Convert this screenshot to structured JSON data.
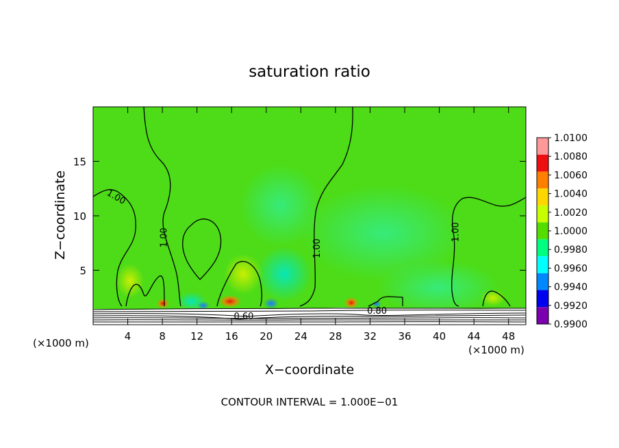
{
  "chart_data": {
    "type": "heatmap",
    "title": "saturation ratio",
    "xlabel": "X−coordinate",
    "ylabel": "Z−coordinate",
    "x_unit_left": "(×1000 m)",
    "x_unit_right": "(×1000 m)",
    "footer": "CONTOUR INTERVAL = 1.000E−01",
    "xlim": [
      0,
      50
    ],
    "ylim": [
      0,
      20
    ],
    "x_ticks": [
      4,
      8,
      12,
      16,
      20,
      24,
      28,
      32,
      36,
      40,
      44,
      48
    ],
    "x_tick_labels": [
      "4",
      "8",
      "12",
      "16",
      "20",
      "24",
      "28",
      "32",
      "36",
      "40",
      "44",
      "48"
    ],
    "y_ticks": [
      5,
      10,
      15
    ],
    "y_tick_labels": [
      "5",
      "10",
      "15"
    ],
    "colorbar": {
      "levels": [
        "1.0100",
        "1.0080",
        "1.0060",
        "1.0040",
        "1.0020",
        "1.0000",
        "0.9980",
        "0.9960",
        "0.9940",
        "0.9920",
        "0.9900"
      ],
      "colors": [
        "#ff9999",
        "#ee1010",
        "#ff7f00",
        "#ffd700",
        "#c8ff00",
        "#55dd00",
        "#00ff80",
        "#00ffff",
        "#0088ff",
        "#0000ee",
        "#7a00b0"
      ]
    },
    "contour_labels": [
      {
        "text": "1.00",
        "x": 2.5,
        "y": 11.5
      },
      {
        "text": "1.00",
        "x": 8.5,
        "y": 8.0
      },
      {
        "text": "1.00",
        "x": 26.2,
        "y": 7.0
      },
      {
        "text": "1.00",
        "x": 42.2,
        "y": 8.5
      },
      {
        "text": "0.60",
        "x": 17.4,
        "y": 0.5
      },
      {
        "text": "0.80",
        "x": 32.8,
        "y": 1.0
      }
    ]
  }
}
